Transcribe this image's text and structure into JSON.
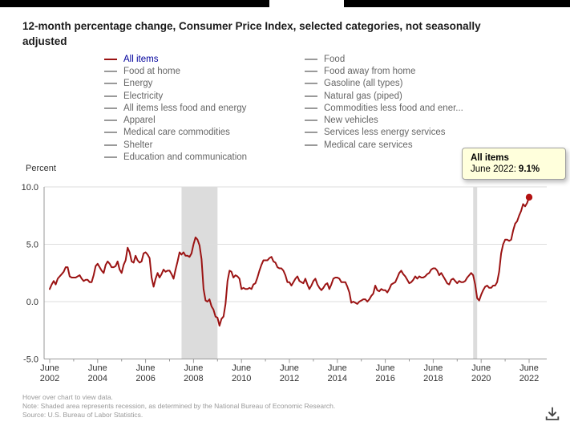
{
  "title": "12-month percentage change, Consumer Price Index, selected categories, not seasonally adjusted",
  "legend": {
    "selected": "All items",
    "selected_color": "#00009c",
    "left": [
      "All items",
      "Food at home",
      "Energy",
      "Electricity",
      "All items less food and energy",
      "Apparel",
      "Medical care commodities",
      "Shelter",
      "Education and communication"
    ],
    "right": [
      "Food",
      "Food away from home",
      "Gasoline (all types)",
      "Natural gas (piped)",
      "Commodities less food and ener...",
      "New vehicles",
      "Services less energy services",
      "Medical care services"
    ]
  },
  "tooltip": {
    "series": "All items",
    "date_label": "June 2022:",
    "value": "9.1%",
    "background": "#ffffdc"
  },
  "footer": {
    "hover": "Hover over chart to view data.",
    "note": "Note: Shaded area represents recession, as determined by the National Bureau of Economic Research.",
    "source": "Source: U.S. Bureau of Labor Statistics."
  },
  "chart_data": {
    "type": "line",
    "title": "12-month percentage change, Consumer Price Index, selected categories, not seasonally adjusted",
    "xlabel": "",
    "ylabel": "Percent",
    "ylim": [
      -5,
      10
    ],
    "yticks": [
      10.0,
      5.0,
      0.0,
      -5.0
    ],
    "grid": true,
    "x_start": "2002-06",
    "x_end": "2022-06",
    "frequency": "monthly",
    "xtick_labels": [
      "June 2002",
      "June 2004",
      "June 2006",
      "June 2008",
      "June 2010",
      "June 2012",
      "June 2014",
      "June 2016",
      "June 2018",
      "June 2020",
      "June 2022"
    ],
    "recessions": [
      {
        "from": "2007-12",
        "to": "2009-06"
      },
      {
        "from": "2020-02",
        "to": "2020-04"
      }
    ],
    "end_point": {
      "label": "June 2022",
      "value": 9.1
    },
    "colors": {
      "line": "#9b1313",
      "marker": "#b31212",
      "recession": "#dcdcdc",
      "grid": "#dddddd",
      "axis": "#999999",
      "tick_text": "#333333"
    },
    "series": [
      {
        "name": "All items",
        "color": "#9b1313",
        "values": [
          1.1,
          1.5,
          1.8,
          1.5,
          2.0,
          2.2,
          2.4,
          2.6,
          3.0,
          3.0,
          2.2,
          2.1,
          2.1,
          2.1,
          2.2,
          2.3,
          2.0,
          1.8,
          1.9,
          1.9,
          1.7,
          1.7,
          2.3,
          3.1,
          3.3,
          3.0,
          2.7,
          2.5,
          3.2,
          3.5,
          3.3,
          3.0,
          3.0,
          3.1,
          3.5,
          2.8,
          2.5,
          3.2,
          3.6,
          4.7,
          4.3,
          3.5,
          3.4,
          4.0,
          3.6,
          3.4,
          3.5,
          4.2,
          4.3,
          4.1,
          3.8,
          2.1,
          1.3,
          2.0,
          2.5,
          2.1,
          2.4,
          2.8,
          2.6,
          2.7,
          2.7,
          2.4,
          2.0,
          2.8,
          3.5,
          4.3,
          4.1,
          4.3,
          4.0,
          4.0,
          3.9,
          4.2,
          5.0,
          5.6,
          5.4,
          4.9,
          3.7,
          1.1,
          0.1,
          0.0,
          0.2,
          -0.4,
          -0.7,
          -1.3,
          -1.4,
          -2.1,
          -1.5,
          -1.3,
          -0.2,
          1.8,
          2.7,
          2.6,
          2.1,
          2.3,
          2.2,
          2.0,
          1.1,
          1.2,
          1.1,
          1.1,
          1.2,
          1.1,
          1.5,
          1.6,
          2.1,
          2.7,
          3.2,
          3.6,
          3.6,
          3.6,
          3.8,
          3.9,
          3.5,
          3.4,
          3.0,
          2.9,
          2.9,
          2.7,
          2.3,
          1.7,
          1.7,
          1.4,
          1.7,
          2.0,
          2.2,
          1.8,
          1.7,
          1.6,
          2.0,
          1.5,
          1.1,
          1.4,
          1.8,
          2.0,
          1.5,
          1.2,
          1.0,
          1.2,
          1.5,
          1.6,
          1.1,
          1.5,
          2.0,
          2.1,
          2.1,
          2.0,
          1.7,
          1.7,
          1.7,
          1.3,
          0.8,
          -0.1,
          0.0,
          -0.1,
          -0.2,
          0.0,
          0.1,
          0.2,
          0.2,
          0.0,
          0.2,
          0.5,
          0.7,
          1.4,
          1.0,
          0.9,
          1.1,
          1.0,
          1.0,
          0.8,
          1.1,
          1.5,
          1.6,
          1.7,
          2.1,
          2.5,
          2.7,
          2.4,
          2.2,
          1.9,
          1.6,
          1.7,
          1.9,
          2.2,
          2.0,
          2.2,
          2.1,
          2.1,
          2.2,
          2.4,
          2.5,
          2.8,
          2.9,
          2.9,
          2.7,
          2.3,
          2.5,
          2.2,
          1.9,
          1.6,
          1.5,
          1.9,
          2.0,
          1.8,
          1.6,
          1.8,
          1.7,
          1.7,
          1.8,
          2.1,
          2.3,
          2.5,
          2.3,
          1.5,
          0.3,
          0.1,
          0.6,
          1.0,
          1.3,
          1.4,
          1.2,
          1.2,
          1.4,
          1.4,
          1.7,
          2.6,
          4.2,
          5.0,
          5.4,
          5.4,
          5.3,
          5.4,
          6.2,
          6.8,
          7.0,
          7.5,
          7.9,
          8.5,
          8.3,
          8.6,
          9.1
        ]
      }
    ]
  }
}
